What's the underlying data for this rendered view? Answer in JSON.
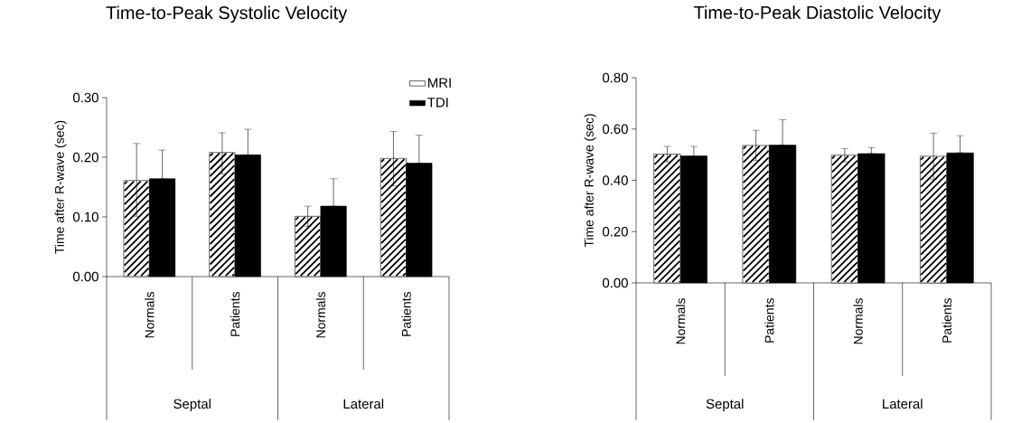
{
  "chart_data": [
    {
      "type": "bar",
      "title": "Time-to-Peak Systolic Velocity",
      "ylabel": "Time after R-wave (sec)",
      "categories": [
        "Normals",
        "Patients",
        "Normals",
        "Patients"
      ],
      "annotations": [
        "Septal",
        "Lateral"
      ],
      "series": [
        {
          "name": "MRI",
          "color": "#ffffff",
          "values": [
            0.161,
            0.208,
            0.101,
            0.198
          ],
          "errors": [
            [
              0.101,
              0.223
            ],
            [
              0.172,
              0.241
            ],
            [
              0.084,
              0.118
            ],
            [
              0.152,
              0.243
            ]
          ]
        },
        {
          "name": "TDI",
          "color": "#000000",
          "values": [
            0.164,
            0.204,
            0.118,
            0.19
          ],
          "errors": [
            [
              0.164,
              0.212
            ],
            [
              0.204,
              0.247
            ],
            [
              0.118,
              0.164
            ],
            [
              0.19,
              0.237
            ]
          ]
        }
      ],
      "ylim": [
        0,
        0.3
      ],
      "yticks": [
        {
          "value": 0,
          "label": "0.00"
        },
        {
          "value": 0.1,
          "label": "0.10"
        },
        {
          "value": 0.2,
          "label": "0.20"
        },
        {
          "value": 0.3,
          "label": "0.30"
        }
      ],
      "legend": "top right"
    },
    {
      "type": "bar",
      "title": "Time-to-Peak Diastolic Velocity",
      "ylabel": "Time after R-wave (sec)",
      "categories": [
        "Normals",
        "Patients",
        "Normals",
        "Patients"
      ],
      "annotations": [
        "Septal",
        "Lateral"
      ],
      "series": [
        {
          "color": "#ffffff",
          "values": [
            0.502,
            0.536,
            0.498,
            0.494
          ],
          "errors": [
            [
              0.472,
              0.532
            ],
            [
              0.477,
              0.595
            ],
            [
              0.472,
              0.524
            ],
            [
              0.404,
              0.584
            ]
          ]
        },
        {
          "color": "#000000",
          "values": [
            0.495,
            0.537,
            0.504,
            0.507
          ],
          "errors": [
            [
              0.495,
              0.532
            ],
            [
              0.537,
              0.636
            ],
            [
              0.504,
              0.527
            ],
            [
              0.507,
              0.574
            ]
          ]
        }
      ],
      "ylim": [
        0,
        0.8
      ],
      "yticks": [
        {
          "value": 0,
          "label": "0.00"
        },
        {
          "value": 0.2,
          "label": "0.20"
        },
        {
          "value": 0.4,
          "label": "0.40"
        },
        {
          "value": 0.6,
          "label": "0.60"
        },
        {
          "value": 0.8,
          "label": "0.80"
        }
      ]
    }
  ]
}
